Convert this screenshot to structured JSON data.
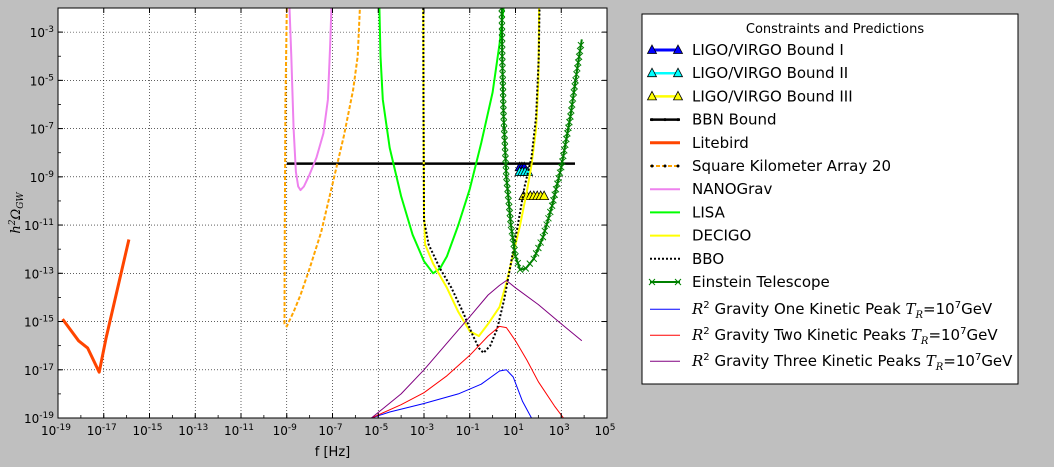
{
  "chart_data": {
    "type": "line",
    "title": "",
    "xlabel": "f [Hz]",
    "ylabel_base": "h",
    "ylabel_sup": "2",
    "ylabel_sym": "Ω",
    "ylabel_sub": "GW",
    "xscale": "log",
    "yscale": "log",
    "xlim_exp": [
      -19,
      5
    ],
    "ylim_exp": [
      -19,
      -2
    ],
    "grid": true,
    "legend_placement": "outside-right",
    "x_ticks": [
      {
        "base": "10",
        "exp": "-19"
      },
      {
        "base": "10",
        "exp": "-17"
      },
      {
        "base": "10",
        "exp": "-15"
      },
      {
        "base": "10",
        "exp": "-13"
      },
      {
        "base": "10",
        "exp": "-11"
      },
      {
        "base": "10",
        "exp": "-9"
      },
      {
        "base": "10",
        "exp": "-7"
      },
      {
        "base": "10",
        "exp": "-5"
      },
      {
        "base": "10",
        "exp": "-3"
      },
      {
        "base": "10",
        "exp": "-1"
      },
      {
        "base": "10",
        "exp": "1"
      },
      {
        "base": "10",
        "exp": "3"
      },
      {
        "base": "10",
        "exp": "5"
      }
    ],
    "y_ticks": [
      {
        "base": "10",
        "exp": "-3"
      },
      {
        "base": "10",
        "exp": "-5"
      },
      {
        "base": "10",
        "exp": "-7"
      },
      {
        "base": "10",
        "exp": "-9"
      },
      {
        "base": "10",
        "exp": "-11"
      },
      {
        "base": "10",
        "exp": "-13"
      },
      {
        "base": "10",
        "exp": "-15"
      },
      {
        "base": "10",
        "exp": "-17"
      },
      {
        "base": "10",
        "exp": "-19"
      }
    ],
    "legend_title": "Constraints and Predictions",
    "series": [
      {
        "name": "LIGO/VIRGO Bound I",
        "color": "#0000ff",
        "width": 3,
        "marker": "triangle",
        "points": [
          [
            1.18,
            -8.6
          ],
          [
            1.28,
            -8.6
          ],
          [
            1.38,
            -8.6
          ]
        ]
      },
      {
        "name": "LIGO/VIRGO Bound II",
        "color": "#00ffff",
        "width": 2.5,
        "marker": "triangle",
        "points": [
          [
            1.18,
            -8.8
          ],
          [
            1.3,
            -8.8
          ],
          [
            1.42,
            -8.8
          ],
          [
            1.55,
            -8.8
          ]
        ]
      },
      {
        "name": "LIGO/VIRGO Bound III",
        "color": "#ffff00",
        "width": 2.5,
        "marker": "triangle",
        "points": [
          [
            1.35,
            -9.8
          ],
          [
            1.5,
            -9.8
          ],
          [
            1.65,
            -9.8
          ],
          [
            1.8,
            -9.8
          ],
          [
            1.95,
            -9.8
          ],
          [
            2.1,
            -9.8
          ],
          [
            2.25,
            -9.8
          ]
        ]
      },
      {
        "name": "BBN Bound",
        "color": "#000000",
        "width": 2.5,
        "marker": "dot",
        "points": [
          [
            -9.0,
            -8.45
          ],
          [
            3.6,
            -8.45
          ]
        ]
      },
      {
        "name": "Litebird",
        "color": "#ff4500",
        "width": 3,
        "marker": "none",
        "points": [
          [
            -18.8,
            -14.9
          ],
          [
            -18.1,
            -15.8
          ],
          [
            -17.7,
            -16.1
          ],
          [
            -17.2,
            -17.1
          ],
          [
            -16.9,
            -15.7
          ],
          [
            -15.9,
            -11.6
          ]
        ]
      },
      {
        "name": "Square Kilometer Array 20",
        "color": "#ffa500",
        "width": 2,
        "marker": "dot",
        "points": [
          [
            -9.0,
            -2.0
          ],
          [
            -9.06,
            -6.0
          ],
          [
            -9.09,
            -12.0
          ],
          [
            -9.1,
            -15.1
          ],
          [
            -9.0,
            -15.2
          ],
          [
            -8.9,
            -15.0
          ],
          [
            -8.7,
            -14.6
          ],
          [
            -8.4,
            -13.9
          ],
          [
            -8.0,
            -12.8
          ],
          [
            -7.5,
            -11.3
          ],
          [
            -7.0,
            -9.3
          ],
          [
            -6.5,
            -7.3
          ],
          [
            -6.1,
            -5.4
          ],
          [
            -5.9,
            -4.0
          ],
          [
            -5.8,
            -2.0
          ]
        ]
      },
      {
        "name": "NANOGrav",
        "color": "#ee82ee",
        "width": 2,
        "marker": "none",
        "points": [
          [
            -8.88,
            -2.0
          ],
          [
            -8.8,
            -4.0
          ],
          [
            -8.7,
            -7.0
          ],
          [
            -8.6,
            -8.8
          ],
          [
            -8.5,
            -9.4
          ],
          [
            -8.4,
            -9.55
          ],
          [
            -8.25,
            -9.4
          ],
          [
            -8.0,
            -8.9
          ],
          [
            -7.7,
            -8.2
          ],
          [
            -7.4,
            -7.2
          ],
          [
            -7.2,
            -5.8
          ],
          [
            -7.1,
            -3.5
          ],
          [
            -7.05,
            -2.0
          ]
        ]
      },
      {
        "name": "LISA",
        "color": "#00ff00",
        "width": 2,
        "marker": "none",
        "points": [
          [
            -4.95,
            -2.0
          ],
          [
            -4.9,
            -4.0
          ],
          [
            -4.8,
            -5.8
          ],
          [
            -4.5,
            -7.8
          ],
          [
            -4.0,
            -9.8
          ],
          [
            -3.5,
            -11.4
          ],
          [
            -3.0,
            -12.5
          ],
          [
            -2.6,
            -13.0
          ],
          [
            -2.3,
            -12.8
          ],
          [
            -2.0,
            -12.3
          ],
          [
            -1.5,
            -11.0
          ],
          [
            -1.0,
            -9.5
          ],
          [
            -0.5,
            -7.6
          ],
          [
            0.0,
            -5.5
          ],
          [
            0.3,
            -3.5
          ],
          [
            0.48,
            -2.0
          ]
        ]
      },
      {
        "name": "DECIGO",
        "color": "#ffff00",
        "width": 2,
        "marker": "none",
        "points": [
          [
            -3.03,
            -2.0
          ],
          [
            -3.02,
            -6.0
          ],
          [
            -3.0,
            -10.5
          ],
          [
            -2.95,
            -11.8
          ],
          [
            -2.6,
            -12.6
          ],
          [
            -2.0,
            -13.6
          ],
          [
            -1.5,
            -14.6
          ],
          [
            -1.0,
            -15.4
          ],
          [
            -0.6,
            -15.6
          ],
          [
            -0.2,
            -15.1
          ],
          [
            0.3,
            -14.4
          ],
          [
            0.6,
            -13.4
          ],
          [
            0.9,
            -12.2
          ],
          [
            1.2,
            -11.0
          ],
          [
            1.5,
            -9.6
          ],
          [
            1.7,
            -8.5
          ],
          [
            1.9,
            -7.0
          ],
          [
            2.0,
            -5.0
          ],
          [
            2.03,
            -2.0
          ]
        ]
      },
      {
        "name": "BBO",
        "color": "#000000",
        "width": 2,
        "dash": "2,2",
        "marker": "none",
        "points": [
          [
            -3.03,
            -2.0
          ],
          [
            -3.02,
            -6.0
          ],
          [
            -3.0,
            -10.8
          ],
          [
            -2.8,
            -11.8
          ],
          [
            -2.3,
            -12.8
          ],
          [
            -1.8,
            -13.6
          ],
          [
            -1.3,
            -14.6
          ],
          [
            -0.9,
            -15.5
          ],
          [
            -0.6,
            -16.1
          ],
          [
            -0.4,
            -16.3
          ],
          [
            -0.1,
            -16.0
          ],
          [
            0.2,
            -15.3
          ],
          [
            0.5,
            -14.1
          ],
          [
            0.8,
            -12.6
          ],
          [
            1.1,
            -11.0
          ],
          [
            1.4,
            -9.4
          ],
          [
            1.7,
            -8.2
          ],
          [
            1.9,
            -6.5
          ],
          [
            2.02,
            -4.0
          ],
          [
            2.05,
            -2.0
          ]
        ]
      },
      {
        "name": "Einstein Telescope",
        "color": "#008000",
        "width": 2,
        "marker": "x",
        "points": [
          [
            0.4,
            -2.0
          ],
          [
            0.42,
            -4.0
          ],
          [
            0.48,
            -6.5
          ],
          [
            0.6,
            -9.0
          ],
          [
            0.8,
            -11.0
          ],
          [
            1.0,
            -12.3
          ],
          [
            1.2,
            -12.85
          ],
          [
            1.45,
            -12.8
          ],
          [
            1.8,
            -12.4
          ],
          [
            2.2,
            -11.5
          ],
          [
            2.6,
            -10.2
          ],
          [
            3.0,
            -8.6
          ],
          [
            3.4,
            -6.5
          ],
          [
            3.7,
            -4.5
          ],
          [
            3.9,
            -3.3
          ]
        ]
      },
      {
        "name_pre": "",
        "name_math": "R",
        "name_sup": "2",
        "name_post": " Gravity One Kinetic Peak ",
        "name_tr": "T",
        "name_trsub": "R",
        "name_eq": "=10",
        "name_eqsup": "7",
        "name_unit": "GeV",
        "color": "#0000ff",
        "width": 1,
        "marker": "none",
        "points": [
          [
            -5.3,
            -19.0
          ],
          [
            -4.5,
            -18.75
          ],
          [
            -3.0,
            -18.4
          ],
          [
            -1.5,
            -18.0
          ],
          [
            -0.5,
            -17.6
          ],
          [
            0.3,
            -17.05
          ],
          [
            0.6,
            -17.0
          ],
          [
            0.9,
            -17.3
          ],
          [
            1.3,
            -18.3
          ],
          [
            1.7,
            -19.0
          ]
        ]
      },
      {
        "name_pre": "",
        "name_math": "R",
        "name_sup": "2",
        "name_post": " Gravity Two Kinetic Peaks ",
        "name_tr": "T",
        "name_trsub": "R",
        "name_eq": "=10",
        "name_eqsup": "7",
        "name_unit": "GeV",
        "color": "#ff0000",
        "width": 1,
        "marker": "none",
        "points": [
          [
            -5.3,
            -19.0
          ],
          [
            -4.0,
            -18.45
          ],
          [
            -3.0,
            -17.95
          ],
          [
            -2.0,
            -17.25
          ],
          [
            -1.0,
            -16.4
          ],
          [
            -0.2,
            -15.6
          ],
          [
            0.3,
            -15.2
          ],
          [
            0.6,
            -15.25
          ],
          [
            1.0,
            -15.8
          ],
          [
            1.5,
            -16.6
          ],
          [
            2.0,
            -17.5
          ],
          [
            2.7,
            -18.5
          ],
          [
            3.1,
            -19.0
          ]
        ]
      },
      {
        "name_pre": "",
        "name_math": "R",
        "name_sup": "2",
        "name_post": " Gravity Three Kinetic Peaks ",
        "name_tr": "T",
        "name_trsub": "R",
        "name_eq": "=10",
        "name_eqsup": "7",
        "name_unit": "GeV",
        "color": "#800080",
        "width": 1,
        "marker": "none",
        "points": [
          [
            -5.3,
            -19.0
          ],
          [
            -4.0,
            -18.0
          ],
          [
            -3.0,
            -17.0
          ],
          [
            -2.0,
            -15.9
          ],
          [
            -1.0,
            -14.8
          ],
          [
            -0.2,
            -13.9
          ],
          [
            0.3,
            -13.5
          ],
          [
            0.6,
            -13.3
          ],
          [
            1.0,
            -13.6
          ],
          [
            2.0,
            -14.3
          ],
          [
            3.0,
            -15.1
          ],
          [
            3.9,
            -15.8
          ]
        ]
      }
    ]
  }
}
